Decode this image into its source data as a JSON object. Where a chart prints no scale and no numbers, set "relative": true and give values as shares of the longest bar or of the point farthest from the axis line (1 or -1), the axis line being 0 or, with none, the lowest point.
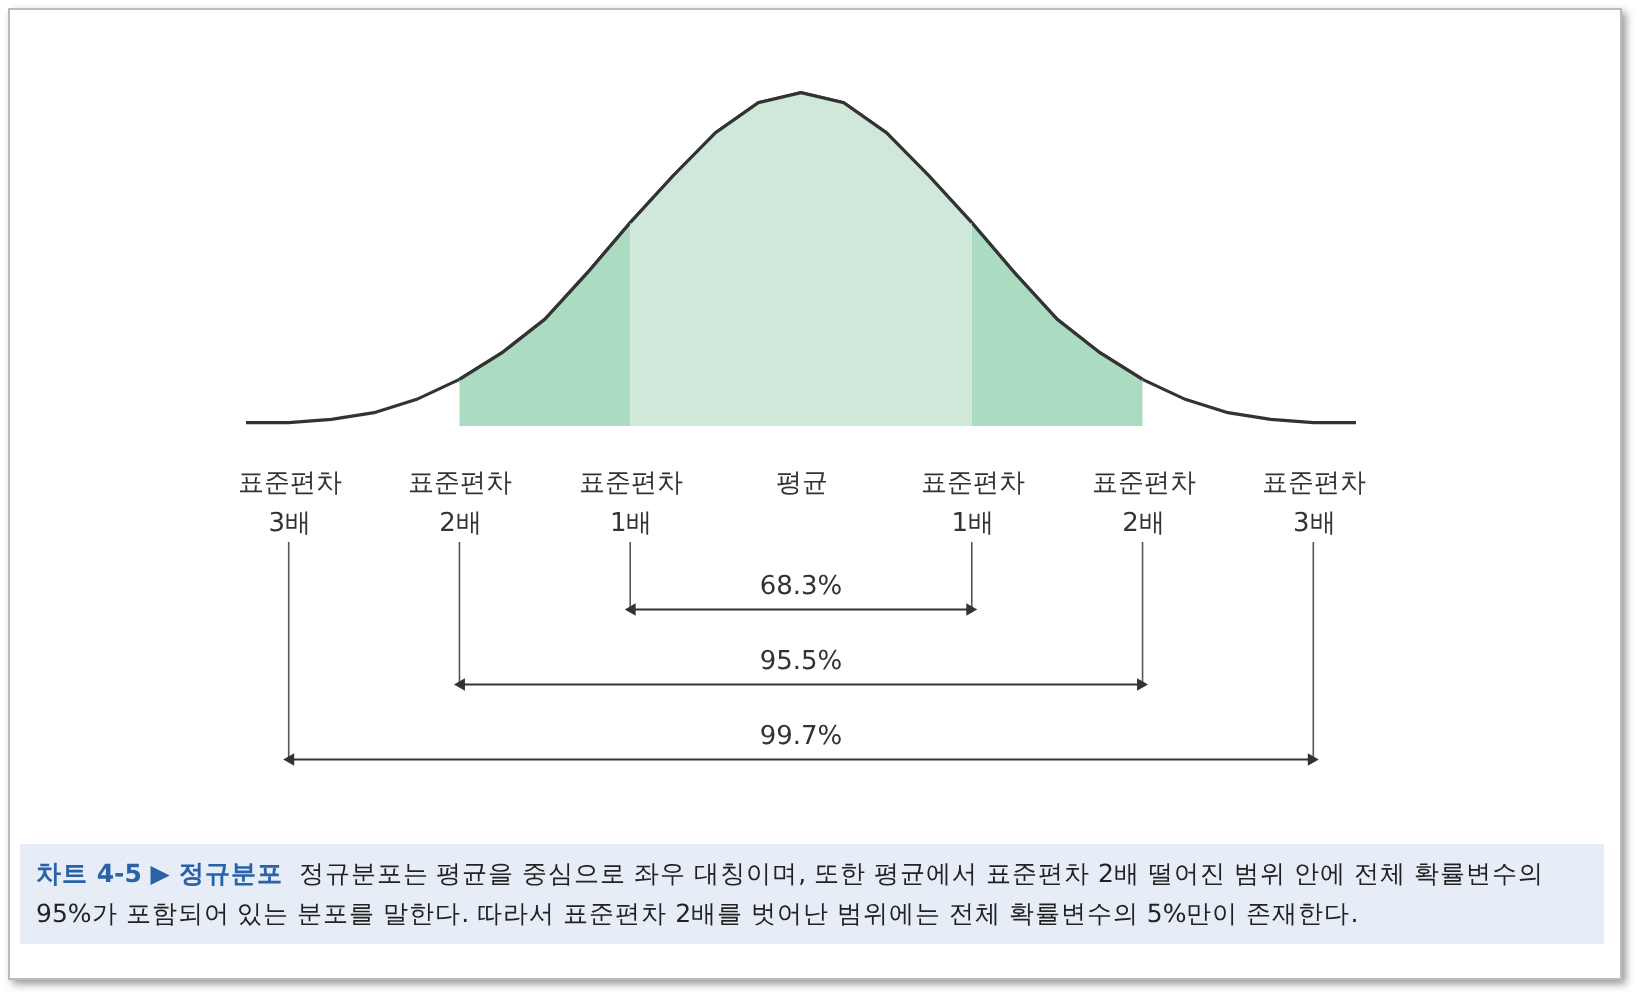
{
  "chart_data": {
    "type": "area",
    "relative": true,
    "title": "차트 4-5 ▶ 정규분포",
    "categories": [
      null,
      "표준편차 3배",
      null,
      null,
      null,
      "표준편차 2배",
      null,
      null,
      null,
      "표준편차 1배",
      null,
      null,
      null,
      "평균",
      null,
      null,
      null,
      "표준편차 1배",
      null,
      null,
      null,
      "표준편차 2배",
      null,
      null,
      null,
      "표준편차 3배",
      null
    ],
    "annotations": [
      "68.3%",
      "95.5%",
      "99.7%",
      "정규분포는 평균을 중심으로 좌우 대칭이며, 또한 평균에서 표준편차 2배 떨어진 범위 안에 전체 확률변수의 95%가 포함되어 있는 분포를 말한다. 따라서 표준편차 2배를 벗어난 범위에는 전체 확률변수의 5%만이 존재한다."
    ],
    "series": [
      {
        "color": "#ffffff",
        "values": [
          0.01,
          0.01,
          0.02,
          0.04,
          0.08,
          0.14,
          0.22,
          0.32,
          0.46,
          0.61,
          0.75,
          0.88,
          0.97,
          1,
          0.97,
          0.88,
          0.75,
          0.61,
          0.46,
          0.32,
          0.22,
          0.14,
          0.08,
          0.04,
          0.02,
          0.01,
          0.01
        ]
      },
      {
        "color": "#abdcc1",
        "values": [
          null,
          null,
          null,
          null,
          null,
          0.14,
          0.22,
          0.32,
          0.46,
          0.61,
          null,
          null,
          null,
          null,
          null,
          null,
          null,
          0.61,
          0.46,
          0.32,
          0.22,
          0.14,
          null,
          null,
          null,
          null,
          null
        ]
      },
      {
        "color": "#cfe8d9",
        "values": [
          null,
          null,
          null,
          null,
          null,
          null,
          null,
          null,
          null,
          0.61,
          0.75,
          0.88,
          0.97,
          1,
          0.97,
          0.88,
          0.75,
          0.61,
          null,
          null,
          null,
          null,
          null,
          null,
          null,
          null,
          null
        ]
      }
    ]
  }
}
